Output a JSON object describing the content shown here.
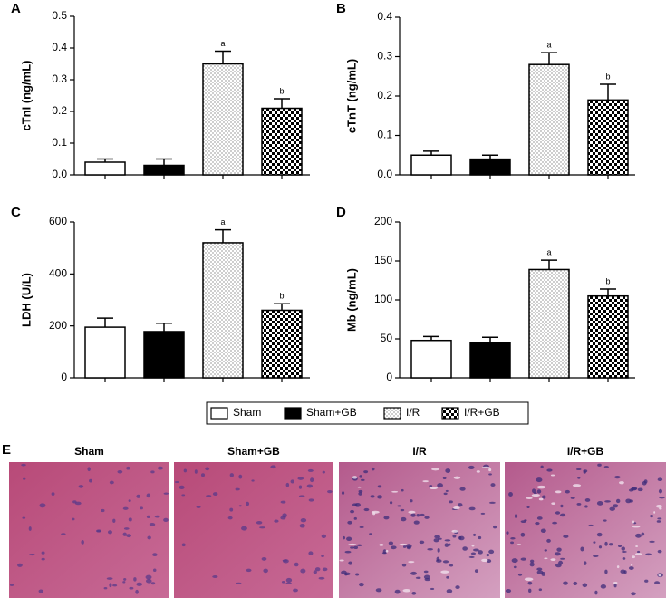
{
  "groups": [
    {
      "name": "Sham",
      "fill": "white"
    },
    {
      "name": "Sham+GB",
      "fill": "black"
    },
    {
      "name": "I/R",
      "fill": "dots"
    },
    {
      "name": "I/R+GB",
      "fill": "checker"
    }
  ],
  "chart_data": [
    {
      "type": "bar",
      "panel": "A",
      "ylabel": "cTnI (ng/mL)",
      "ylim": [
        0,
        0.5
      ],
      "yticks": [
        {
          "value": 0,
          "label": "0.0"
        },
        0.1,
        0.2,
        0.3,
        0.4,
        0.5
      ],
      "values": [
        0.04,
        0.03,
        0.35,
        0.21
      ],
      "errors": [
        0.01,
        0.02,
        0.04,
        0.03
      ],
      "annotations": [
        {
          "index": 2,
          "text": "a"
        },
        {
          "index": 3,
          "text": "b"
        }
      ]
    },
    {
      "type": "bar",
      "panel": "B",
      "ylabel": "cTnT (ng/mL)",
      "ylim": [
        0,
        0.4
      ],
      "yticks": [
        {
          "value": 0,
          "label": "0.0"
        },
        0.1,
        0.2,
        0.3,
        0.4
      ],
      "values": [
        0.05,
        0.04,
        0.28,
        0.19
      ],
      "errors": [
        0.01,
        0.01,
        0.03,
        0.04
      ],
      "annotations": [
        {
          "index": 2,
          "text": "a"
        },
        {
          "index": 3,
          "text": "b"
        }
      ]
    },
    {
      "type": "bar",
      "panel": "C",
      "ylabel": "LDH (U/L)",
      "ylim": [
        0,
        600
      ],
      "yticks": [
        0,
        200,
        400,
        600
      ],
      "values": [
        195,
        178,
        520,
        260
      ],
      "errors": [
        35,
        32,
        50,
        25
      ],
      "annotations": [
        {
          "index": 2,
          "text": "a"
        },
        {
          "index": 3,
          "text": "b"
        }
      ]
    },
    {
      "type": "bar",
      "panel": "D",
      "ylabel": "Mb (ng/mL)",
      "ylim": [
        0,
        200
      ],
      "yticks": [
        0,
        50,
        100,
        150,
        200
      ],
      "values": [
        48,
        45,
        139,
        105
      ],
      "errors": [
        5,
        7,
        12,
        9
      ],
      "annotations": [
        {
          "index": 2,
          "text": "a"
        },
        {
          "index": 3,
          "text": "b"
        }
      ]
    }
  ],
  "histology": {
    "panel": "E",
    "titles": [
      "Sham",
      "Sham+GB",
      "I/R",
      "I/R+GB"
    ]
  }
}
